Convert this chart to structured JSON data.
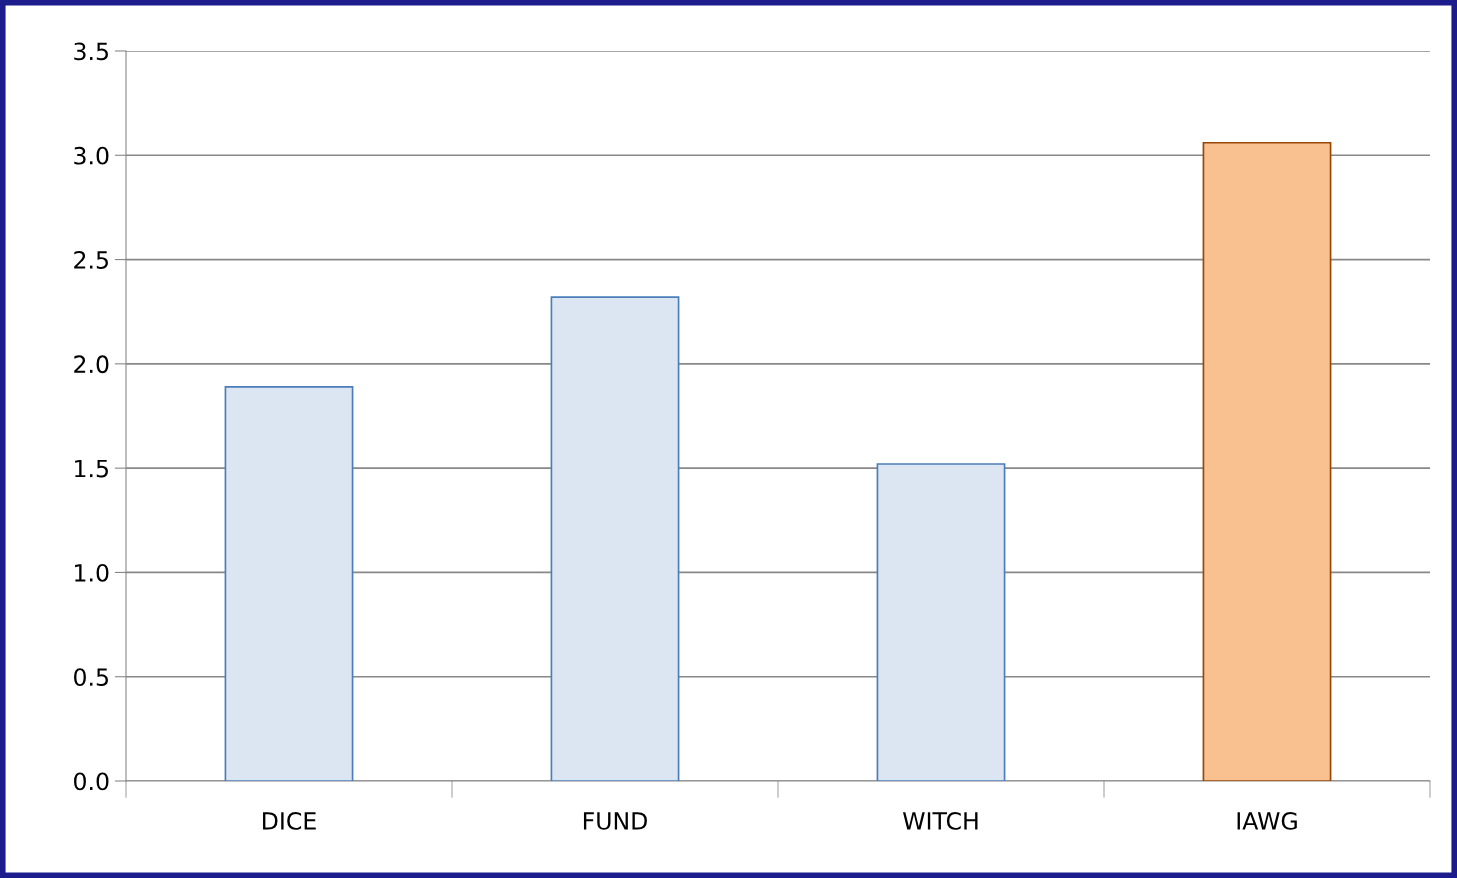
{
  "chart_data": {
    "type": "bar",
    "categories": [
      "DICE",
      "FUND",
      "WITCH",
      "IAWG"
    ],
    "values": [
      1.89,
      2.32,
      1.52,
      3.06
    ],
    "colors": [
      "#dce6f2",
      "#dce6f2",
      "#dce6f2",
      "#f9c090"
    ],
    "ylim": [
      0,
      3.5
    ],
    "yticks": [
      {
        "value": 0,
        "label": "0.0"
      },
      0.5,
      {
        "value": 1,
        "label": "1.0"
      },
      1.5,
      {
        "value": 2,
        "label": "2.0"
      },
      2.5,
      {
        "value": 3,
        "label": "3.0"
      },
      3.5
    ],
    "grid": "y",
    "legend": false
  }
}
